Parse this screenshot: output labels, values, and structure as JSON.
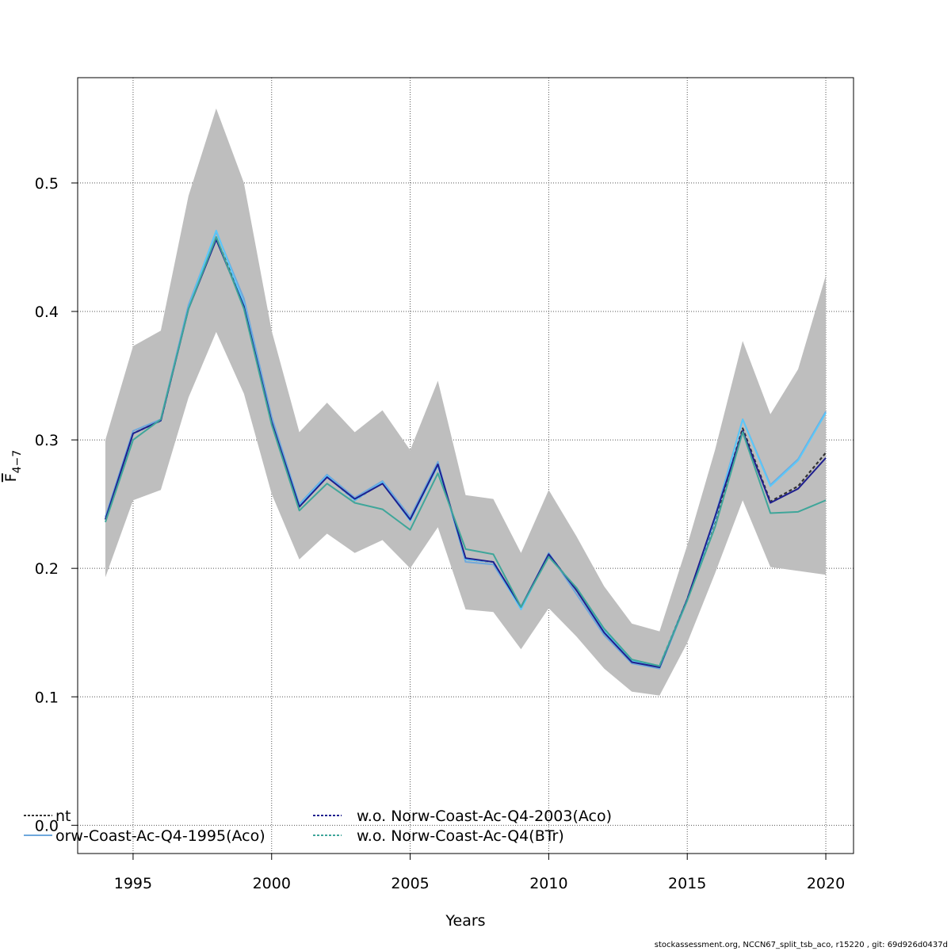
{
  "chart_data": {
    "type": "line",
    "xlabel": "Years",
    "ylabel": {
      "base": "F",
      "sub": "4−7"
    },
    "xlim": [
      1993,
      2021
    ],
    "ylim": [
      -0.022,
      0.582
    ],
    "xticks": [
      1995,
      2000,
      2005,
      2010,
      2015,
      2020
    ],
    "yticks": [
      0.0,
      0.1,
      0.2,
      0.3,
      0.4,
      0.5
    ],
    "ytick_labels": [
      "0.0",
      "0.1",
      "0.2",
      "0.3",
      "0.4",
      "0.5"
    ],
    "grid": true,
    "legend_position": "bottom",
    "x": [
      1994,
      1995,
      1996,
      1997,
      1998,
      1999,
      2000,
      2001,
      2002,
      2003,
      2004,
      2005,
      2006,
      2007,
      2008,
      2009,
      2010,
      2011,
      2012,
      2013,
      2014,
      2015,
      2016,
      2017,
      2018,
      2019,
      2020
    ],
    "ci_band": {
      "color": "#bebebe",
      "upper": [
        0.3,
        0.373,
        0.385,
        0.49,
        0.558,
        0.5,
        0.385,
        0.306,
        0.329,
        0.306,
        0.323,
        0.292,
        0.346,
        0.257,
        0.254,
        0.212,
        0.261,
        0.225,
        0.186,
        0.157,
        0.151,
        0.218,
        0.292,
        0.377,
        0.32,
        0.355,
        0.428
      ],
      "lower": [
        0.193,
        0.253,
        0.261,
        0.333,
        0.384,
        0.336,
        0.258,
        0.207,
        0.227,
        0.212,
        0.222,
        0.2,
        0.232,
        0.168,
        0.166,
        0.137,
        0.169,
        0.147,
        0.122,
        0.104,
        0.101,
        0.142,
        0.196,
        0.253,
        0.201,
        0.198,
        0.195
      ]
    },
    "series": [
      {
        "color": "#333333",
        "dashed": true,
        "values": [
          0.238,
          0.305,
          0.315,
          0.403,
          0.457,
          0.406,
          0.315,
          0.248,
          0.272,
          0.253,
          0.267,
          0.238,
          0.281,
          0.207,
          0.205,
          0.169,
          0.211,
          0.183,
          0.151,
          0.128,
          0.124,
          0.176,
          0.237,
          0.309,
          0.252,
          0.264,
          0.29
        ]
      },
      {
        "color": "#6fa8dc",
        "values": [
          0.24,
          0.307,
          0.316,
          0.405,
          0.462,
          0.41,
          0.318,
          0.25,
          0.273,
          0.255,
          0.268,
          0.24,
          0.283,
          0.205,
          0.203,
          0.169,
          0.212,
          0.18,
          0.148,
          0.126,
          0.122,
          0.175,
          0.24,
          0.316,
          0.265,
          0.285,
          0.322
        ]
      },
      {
        "color": "#5ac8fa",
        "values": [
          0.238,
          0.305,
          0.315,
          0.403,
          0.463,
          0.406,
          0.314,
          0.249,
          0.272,
          0.253,
          0.267,
          0.237,
          0.28,
          0.207,
          0.205,
          0.168,
          0.211,
          0.183,
          0.151,
          0.128,
          0.124,
          0.176,
          0.238,
          0.316,
          0.264,
          0.284,
          0.321
        ]
      },
      {
        "color": "#1f1f8f",
        "values": [
          0.238,
          0.305,
          0.315,
          0.402,
          0.456,
          0.404,
          0.314,
          0.248,
          0.271,
          0.254,
          0.266,
          0.238,
          0.281,
          0.208,
          0.205,
          0.17,
          0.211,
          0.183,
          0.15,
          0.127,
          0.123,
          0.176,
          0.24,
          0.307,
          0.251,
          0.262,
          0.286
        ]
      },
      {
        "color": "#3fa69a",
        "values": [
          0.236,
          0.3,
          0.316,
          0.402,
          0.458,
          0.402,
          0.312,
          0.245,
          0.266,
          0.251,
          0.246,
          0.23,
          0.274,
          0.215,
          0.211,
          0.17,
          0.209,
          0.185,
          0.153,
          0.129,
          0.124,
          0.175,
          0.232,
          0.306,
          0.243,
          0.244,
          0.253
        ]
      }
    ],
    "legend": [
      {
        "label": "nt",
        "color": "#333333",
        "dashed": true
      },
      {
        "label": "orw-Coast-Ac-Q4-1995(Aco)",
        "color": "#6fa8dc",
        "dashed": false
      },
      {
        "label": "w.o. Norw-Coast-Ac-Q4-2003(Aco)",
        "color": "#1f1f8f",
        "dashed": true
      },
      {
        "label": "w.o. Norw-Coast-Ac-Q4(BTr)",
        "color": "#3fa69a",
        "dashed": true
      }
    ]
  },
  "footer_note": "stockassessment.org, NCCN67_split_tsb_aco, r15220 , git: 69d926d0437d"
}
